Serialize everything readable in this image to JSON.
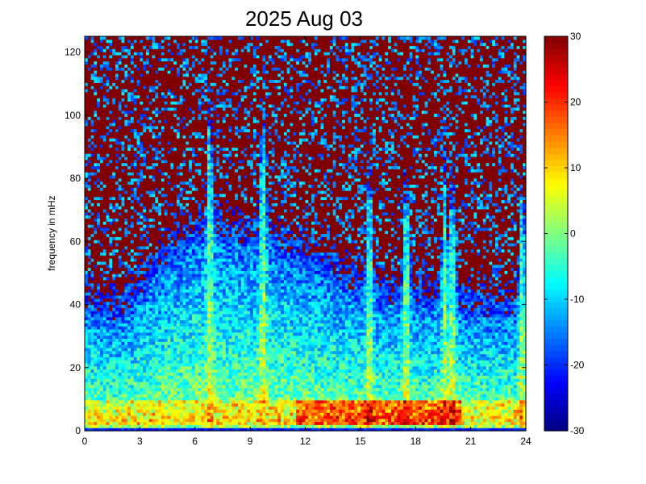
{
  "chart_data": {
    "type": "heatmap",
    "title": "2025 Aug 03",
    "xlabel": "",
    "ylabel": "frequency in mHz",
    "xlim": [
      0,
      24
    ],
    "ylim": [
      0,
      125
    ],
    "x_ticks": [
      "0",
      "3",
      "6",
      "9",
      "12",
      "15",
      "18",
      "21",
      "24"
    ],
    "y_ticks": [
      "0",
      "20",
      "40",
      "60",
      "80",
      "100",
      "120"
    ],
    "colorbar": {
      "colormap": "jet",
      "clim": [
        -30,
        30
      ],
      "ticks": [
        "-30",
        "-20",
        "-10",
        "0",
        "10",
        "20",
        "30"
      ]
    },
    "grid": {
      "time_bins": 144,
      "freq_bins": 128
    },
    "features": {
      "noise_floor_mhz_by_hour": [
        [
          0,
          38
        ],
        [
          2,
          34
        ],
        [
          4,
          50
        ],
        [
          6,
          60
        ],
        [
          8,
          60
        ],
        [
          10,
          58
        ],
        [
          12,
          52
        ],
        [
          14,
          46
        ],
        [
          16,
          40
        ],
        [
          18,
          40
        ],
        [
          20,
          38
        ],
        [
          22,
          36
        ],
        [
          24,
          36
        ]
      ],
      "strong_low_frequency_band_mhz": [
        2,
        10
      ],
      "strong_activity_hours": [
        11.5,
        20.5
      ],
      "vertical_streaks_hours": [
        6.8,
        9.7,
        15.5,
        17.5,
        19.6,
        20.0,
        23.8
      ]
    }
  }
}
